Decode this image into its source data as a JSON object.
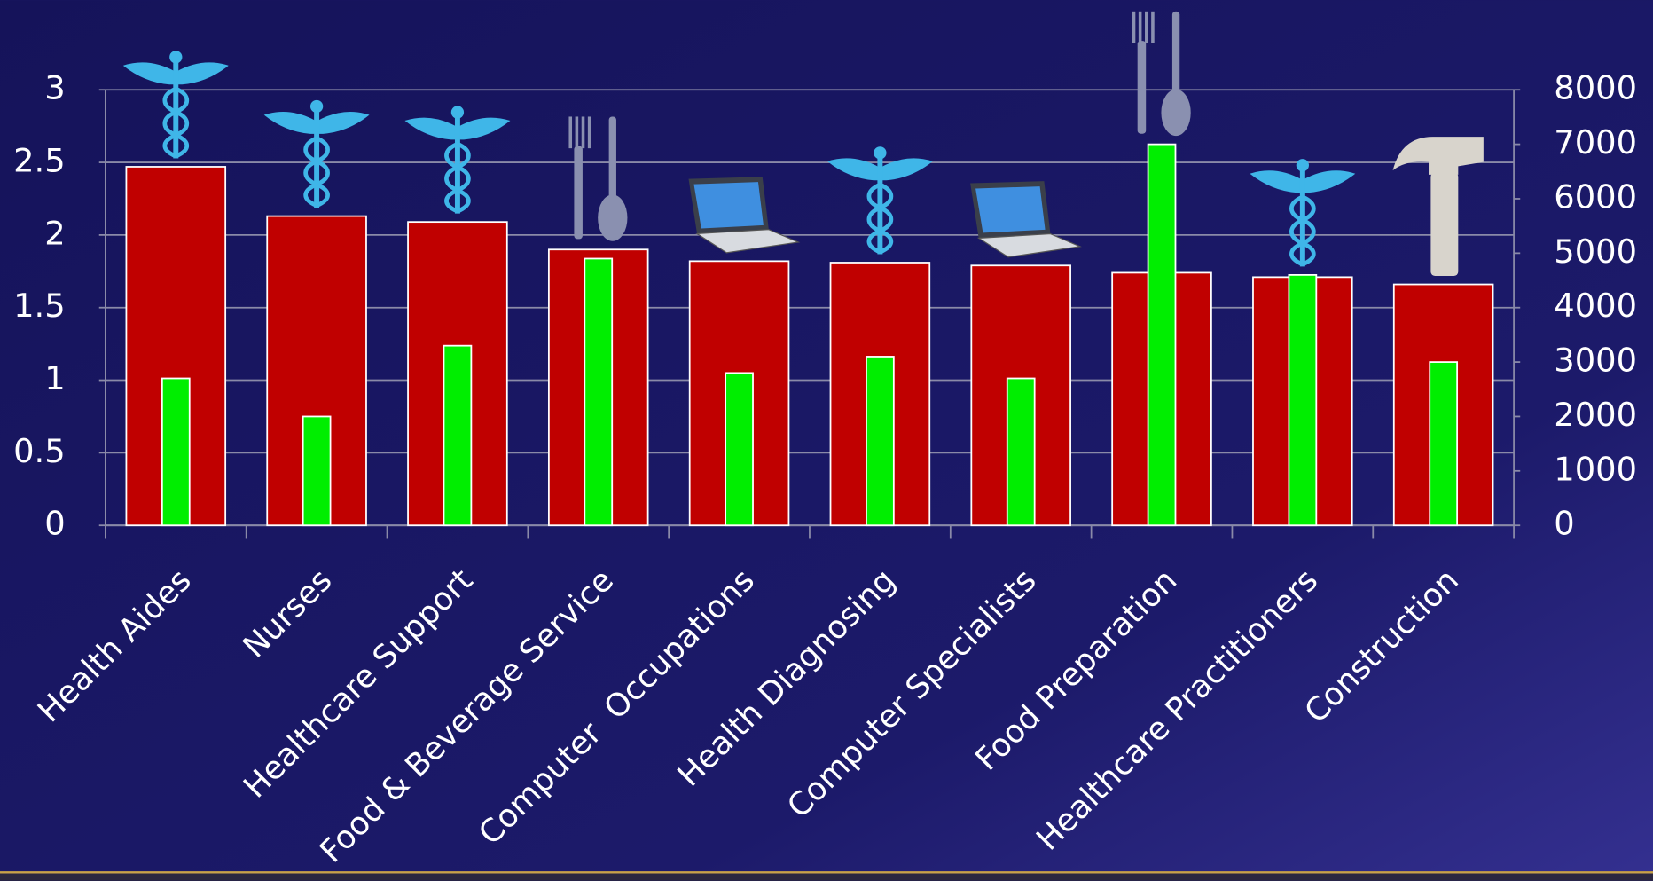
{
  "chart_data": {
    "type": "bar",
    "categories": [
      "Health Aides",
      "Nurses",
      "Healthcare Support",
      "Food & Beverage Service",
      "Computer  Occupations",
      "Health Diagnosing",
      "Computer Specialists",
      "Food Preparation",
      "Healthcare Practitioners",
      "Construction"
    ],
    "series": [
      {
        "color": "#c00000",
        "values": [
          2.47,
          2.13,
          2.09,
          1.9,
          1.82,
          1.81,
          1.79,
          1.74,
          1.71,
          1.66
        ]
      },
      {
        "color": "#00ee00",
        "axis": "y2",
        "values": [
          2700,
          2000,
          3300,
          4900,
          2800,
          3100,
          2700,
          7000,
          4600,
          3000
        ]
      }
    ],
    "ylim": [
      0,
      3
    ],
    "yticks": [
      0,
      0.5,
      1,
      1.5,
      2,
      2.5,
      3
    ],
    "y2lim": [
      0,
      8000
    ],
    "y2ticks": [
      0,
      1000,
      2000,
      3000,
      4000,
      5000,
      6000,
      7000,
      8000
    ],
    "grid": true
  }
}
